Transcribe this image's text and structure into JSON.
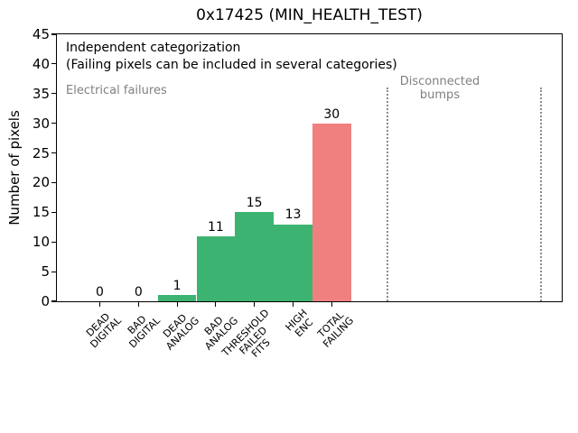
{
  "chart_data": {
    "type": "bar",
    "title": "0x17425 (MIN_HEALTH_TEST)",
    "ylabel": "Number of pixels",
    "xlabel": "",
    "ylim": [
      0,
      45
    ],
    "yticks": [
      0,
      5,
      10,
      15,
      20,
      25,
      30,
      35,
      40,
      45
    ],
    "categories": [
      "DEAD\nDIGITAL",
      "BAD\nDIGITAL",
      "DEAD\nANALOG",
      "BAD\nANALOG",
      "THRESHOLD\nFAILED\nFITS",
      "HIGH\nENC",
      "TOTAL\nFAILING"
    ],
    "values": [
      0,
      0,
      1,
      11,
      15,
      13,
      30
    ],
    "value_labels": [
      "0",
      "0",
      "1",
      "11",
      "15",
      "13",
      "30"
    ],
    "bar_colors": [
      "#3cb371",
      "#3cb371",
      "#3cb371",
      "#3cb371",
      "#3cb371",
      "#3cb371",
      "#f08080"
    ],
    "grid": false,
    "legend": null,
    "annotations": {
      "note_line1": "Independent categorization",
      "note_line2": "(Failing pixels can be included in several categories)",
      "region_left_label": "Electrical failures",
      "region_right_label": "Disconnected\nbumps"
    },
    "separators": {
      "x_fraction_of_plot": [
        0.653,
        0.957
      ],
      "ymax_fraction": 0.8,
      "style": "dotted",
      "color": "#8c8c8c"
    },
    "colors": {
      "bar_green": "#3cb371",
      "bar_red": "#f08080",
      "muted_text": "#808080",
      "axis": "#000000"
    }
  }
}
